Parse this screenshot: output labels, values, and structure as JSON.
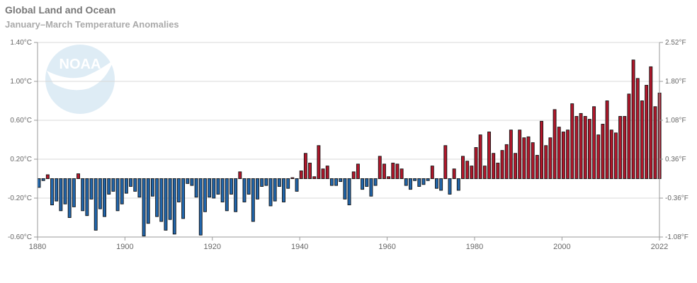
{
  "chart_data": {
    "type": "bar",
    "title": "Global Land and Ocean",
    "subtitle": "January–March Temperature Anomalies",
    "xlabel": "",
    "ylabel": "",
    "ylim": [
      -0.6,
      1.4
    ],
    "left_ticks": [
      "1.40°C",
      "1.00°C",
      "0.60°C",
      "0.20°C",
      "-0.20°C",
      "-0.60°C"
    ],
    "left_tick_values": [
      1.4,
      1.0,
      0.6,
      0.2,
      -0.2,
      -0.6
    ],
    "right_ticks": [
      "2.52°F",
      "1.80°F",
      "1.08°F",
      "0.36°F",
      "-0.36°F",
      "-1.08°F"
    ],
    "x_ticks": [
      "1880",
      "1900",
      "1920",
      "1940",
      "1960",
      "1980",
      "2000",
      "2022"
    ],
    "x_tick_values": [
      1880,
      1900,
      1920,
      1940,
      1960,
      1980,
      2000,
      2022
    ],
    "grid": true,
    "start_year": 1880,
    "positive_color": "#b2172b",
    "negative_color": "#2166ac",
    "values": [
      -0.09,
      -0.02,
      0.04,
      -0.27,
      -0.23,
      -0.33,
      -0.26,
      -0.4,
      -0.29,
      0.05,
      -0.33,
      -0.38,
      -0.21,
      -0.53,
      -0.31,
      -0.39,
      -0.16,
      -0.13,
      -0.33,
      -0.26,
      -0.15,
      -0.08,
      -0.13,
      -0.19,
      -0.59,
      -0.46,
      -0.18,
      -0.39,
      -0.44,
      -0.53,
      -0.42,
      -0.57,
      -0.24,
      -0.41,
      -0.05,
      -0.07,
      -0.19,
      -0.58,
      -0.34,
      -0.19,
      -0.2,
      -0.16,
      -0.24,
      -0.33,
      -0.16,
      -0.34,
      0.07,
      -0.24,
      -0.16,
      -0.44,
      -0.21,
      -0.08,
      -0.07,
      -0.28,
      -0.23,
      -0.08,
      -0.24,
      -0.1,
      0.01,
      -0.13,
      0.08,
      0.26,
      0.16,
      0.02,
      0.34,
      0.1,
      0.13,
      -0.07,
      -0.07,
      -0.03,
      -0.21,
      -0.27,
      0.07,
      0.15,
      -0.11,
      -0.08,
      -0.18,
      -0.07,
      0.23,
      0.15,
      0.02,
      0.16,
      0.15,
      0.1,
      -0.07,
      -0.11,
      -0.02,
      -0.08,
      -0.06,
      -0.02,
      0.13,
      -0.1,
      -0.12,
      0.34,
      -0.16,
      0.1,
      -0.12,
      0.23,
      0.18,
      0.13,
      0.32,
      0.45,
      0.13,
      0.48,
      0.26,
      0.16,
      0.29,
      0.35,
      0.5,
      0.26,
      0.5,
      0.42,
      0.43,
      0.37,
      0.24,
      0.59,
      0.34,
      0.42,
      0.71,
      0.53,
      0.48,
      0.5,
      0.77,
      0.64,
      0.67,
      0.64,
      0.61,
      0.74,
      0.45,
      0.56,
      0.8,
      0.5,
      0.47,
      0.64,
      0.64,
      0.87,
      1.22,
      1.03,
      0.8,
      0.96,
      1.15,
      0.74,
      0.88
    ]
  },
  "logo": {
    "text": "NOAA"
  }
}
